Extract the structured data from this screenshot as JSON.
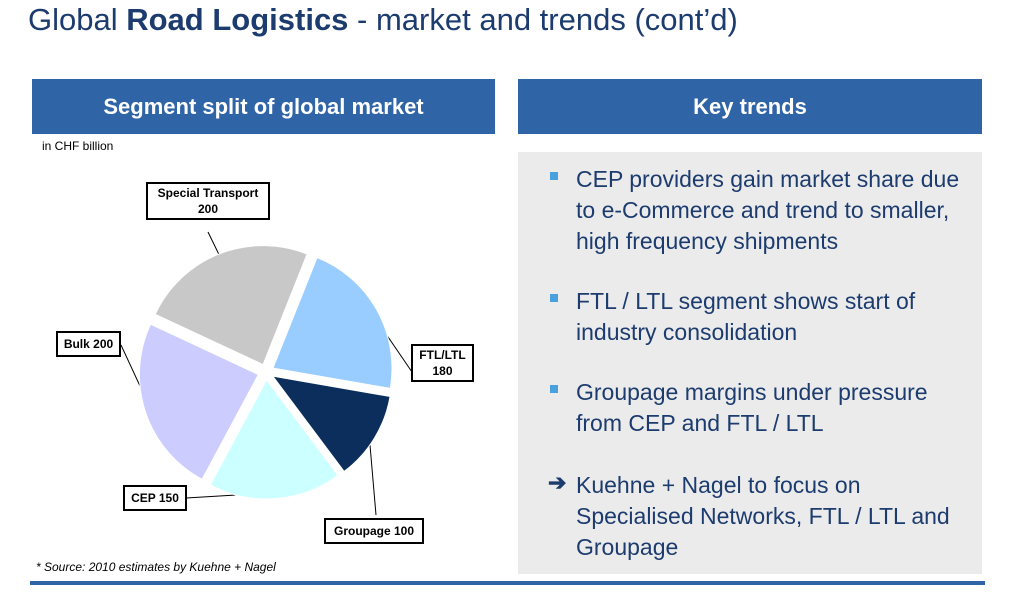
{
  "title": {
    "prefix": "Global ",
    "bold": "Road Logistics",
    "suffix": " - market and trends (cont’d)"
  },
  "left_header": "Segment split of global market",
  "right_header": "Key trends",
  "unit_note": "in CHF billion",
  "source_note": "* Source: 2010 estimates by Kuehne + Nagel",
  "chart_data": {
    "type": "pie",
    "unit": "CHF billion",
    "slices": [
      {
        "label": "Special Transport",
        "value_label": "200",
        "value": 200,
        "color": "#c8c8c8"
      },
      {
        "label": "FTL/LTL",
        "value_label": "180",
        "value": 180,
        "color": "#99ccff"
      },
      {
        "label": "Groupage",
        "value_label": "100",
        "value": 100,
        "color": "#0b2e5c"
      },
      {
        "label": "CEP",
        "value_label": "150",
        "value": 150,
        "color": "#ccffff"
      },
      {
        "label": "Bulk",
        "value_label": "200",
        "value": 200,
        "color": "#ccccff"
      }
    ],
    "callouts": {
      "special": "Special Transport",
      "special_value": "200",
      "ftl": "FTL/LTL",
      "ftl_value": "180",
      "groupage": "Groupage 100",
      "cep": "CEP 150",
      "bulk": "Bulk 200"
    }
  },
  "trends": {
    "t1": "CEP providers gain market share due to e-Commerce and trend to smaller, high frequency shipments",
    "t2": "FTL / LTL segment shows start of industry consolidation",
    "t3": "Groupage margins under pressure from CEP and FTL / LTL",
    "t4_arrow": "➔",
    "t4": "Kuehne + Nagel to focus on Specialised Networks, FTL / LTL and Groupage"
  },
  "colors": {
    "header": "#2f64a6",
    "text": "#1c3b6e",
    "panel": "#ebebeb",
    "bullet": "#4aa0dc"
  }
}
